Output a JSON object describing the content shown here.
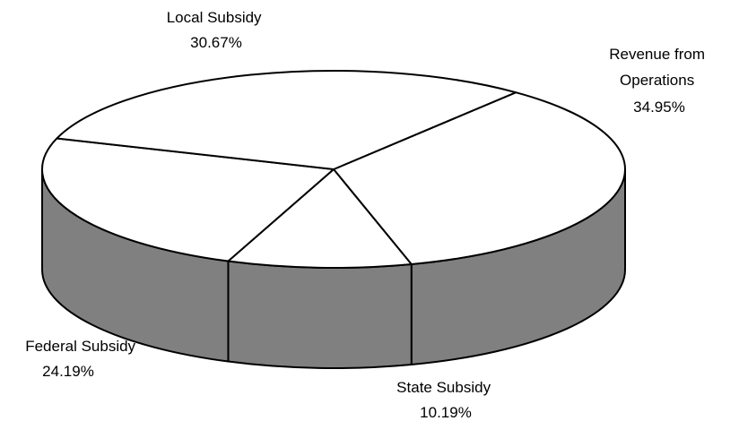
{
  "chart_data": {
    "type": "pie",
    "style": "3d",
    "categories": [
      "Revenue from Operations",
      "State Subsidy",
      "Federal Subsidy",
      "Local Subsidy"
    ],
    "values": [
      34.95,
      10.19,
      24.19,
      30.67
    ],
    "labels": [
      {
        "name": "Revenue from",
        "name2": "Operations",
        "pct": "34.95%"
      },
      {
        "name": "State Subsidy",
        "name2": "",
        "pct": "10.19%"
      },
      {
        "name": "Federal Subsidy",
        "name2": "",
        "pct": "24.19%"
      },
      {
        "name": "Local Subsidy",
        "name2": "",
        "pct": "30.67%"
      }
    ],
    "title": "",
    "legend": "none"
  },
  "colors": {
    "top": "#ffffff",
    "side": "#808080",
    "edge": "#000000"
  }
}
